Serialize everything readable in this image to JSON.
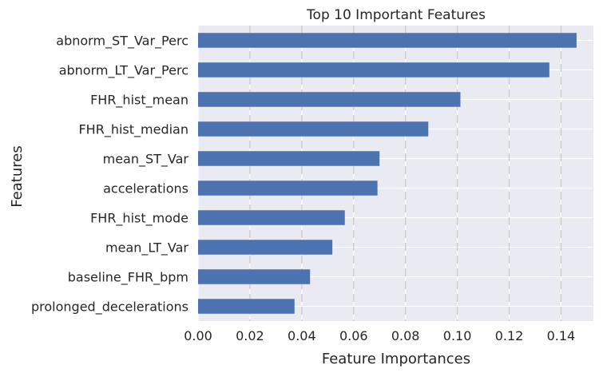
{
  "chart_data": {
    "type": "bar",
    "orientation": "horizontal",
    "title": "Top 10 Important Features",
    "xlabel": "Feature Importances",
    "ylabel": "Features",
    "categories": [
      "abnorm_ST_Var_Perc",
      "abnorm_LT_Var_Perc",
      "FHR_hist_mean",
      "FHR_hist_median",
      "mean_ST_Var",
      "accelerations",
      "FHR_hist_mode",
      "mean_LT_Var",
      "baseline_FHR_bpm",
      "prolonged_decelerations"
    ],
    "values": [
      0.146,
      0.1355,
      0.1012,
      0.0888,
      0.07,
      0.0692,
      0.0566,
      0.0518,
      0.0432,
      0.0372
    ],
    "xlim": [
      0,
      0.1525
    ],
    "xticks": [
      0.0,
      0.02,
      0.04,
      0.06,
      0.08,
      0.1,
      0.12,
      0.14
    ],
    "xtick_labels": [
      "0.00",
      "0.02",
      "0.04",
      "0.06",
      "0.08",
      "0.10",
      "0.12",
      "0.14"
    ],
    "grid": true,
    "grid_style": "dashed vertical, solid horizontal",
    "colors": {
      "bar": "#4c72b0",
      "background": "#eaeaf2",
      "grid": "#ffffff",
      "vgrid": "#cccccc",
      "text": "#262626"
    }
  }
}
